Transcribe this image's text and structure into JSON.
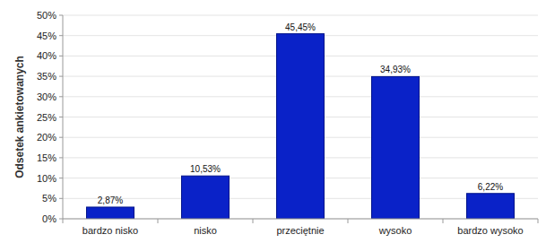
{
  "chart_data": {
    "type": "bar",
    "y_label": "Odsetek ankietowanych",
    "categories": [
      "bardzo nisko",
      "nisko",
      "przeciętnie",
      "wysoko",
      "bardzo wysoko"
    ],
    "values": [
      2.87,
      10.53,
      45.45,
      34.93,
      6.22
    ],
    "value_labels": [
      "2,87%",
      "10,53%",
      "45,45%",
      "34,93%",
      "6,22%"
    ],
    "color": "#0a22c8",
    "ylim": [
      0,
      50
    ],
    "yticks": [
      {
        "value": 0,
        "label": "0%"
      },
      {
        "value": 5,
        "label": "5%"
      },
      {
        "value": 10,
        "label": "10%"
      },
      {
        "value": 15,
        "label": "15%"
      },
      {
        "value": 20,
        "label": "20%"
      },
      {
        "value": 25,
        "label": "25%"
      },
      {
        "value": 30,
        "label": "30%"
      },
      {
        "value": 35,
        "label": "35%"
      },
      {
        "value": 40,
        "label": "40%"
      },
      {
        "value": 45,
        "label": "45%"
      },
      {
        "value": 50,
        "label": "50%"
      }
    ],
    "grid": true,
    "data_labels": true
  }
}
